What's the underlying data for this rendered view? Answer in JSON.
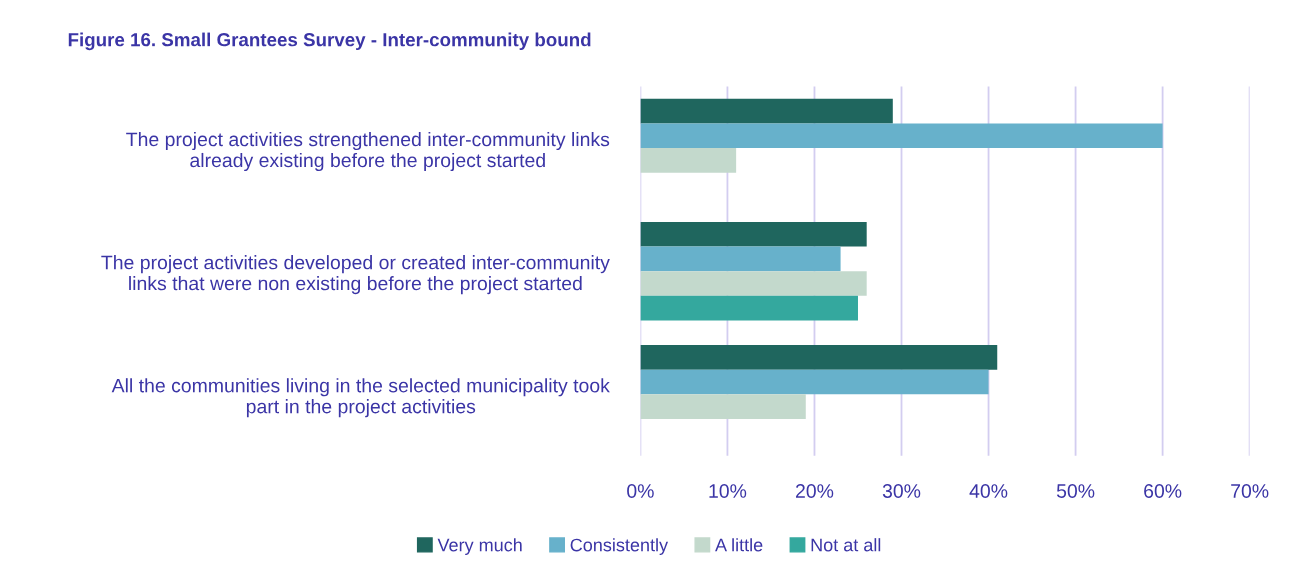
{
  "chart_data": {
    "type": "bar",
    "orientation": "horizontal",
    "title": "Figure 16. Small Grantees Survey - Inter-community bound",
    "categories": [
      "The project activities strengthened inter-community links\nalready existing before the project started",
      "The project activities developed or created inter-community\nlinks that were non existing before the project started",
      "All the communities living in the selected municipality took\npart in the project activities"
    ],
    "series": [
      {
        "name": "Very much",
        "color": "#1f665e",
        "values": [
          29,
          26,
          41
        ]
      },
      {
        "name": "Consistently",
        "color": "#67b1cb",
        "values": [
          60,
          23,
          40
        ]
      },
      {
        "name": "A little",
        "color": "#c3d9cc",
        "values": [
          11,
          26,
          19
        ]
      },
      {
        "name": "Not at all",
        "color": "#34a89e",
        "values": [
          null,
          25,
          null
        ]
      }
    ],
    "xlim": [
      0,
      70
    ],
    "xticks": [
      {
        "value": 0,
        "label": "0%"
      },
      {
        "value": 10,
        "label": "10%"
      },
      {
        "value": 20,
        "label": "20%"
      },
      {
        "value": 30,
        "label": "30%"
      },
      {
        "value": 40,
        "label": "40%"
      },
      {
        "value": 50,
        "label": "50%"
      },
      {
        "value": 60,
        "label": "60%"
      },
      {
        "value": 70,
        "label": "70%"
      }
    ],
    "grid": "x",
    "legend": "bottom"
  }
}
